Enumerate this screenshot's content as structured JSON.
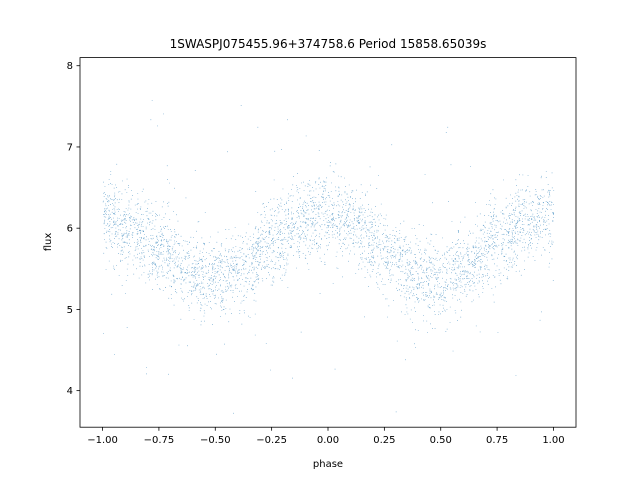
{
  "chart_data": {
    "type": "scatter",
    "title": "1SWASPJ075455.96+374758.6 Period 15858.65039s",
    "xlabel": "phase",
    "ylabel": "flux",
    "xlim": [
      -1.1,
      1.1
    ],
    "ylim": [
      3.55,
      8.1
    ],
    "x_ticks": [
      -1.0,
      -0.75,
      -0.5,
      -0.25,
      0.0,
      0.25,
      0.5,
      0.75,
      1.0
    ],
    "x_tick_labels": [
      "−1.00",
      "−0.75",
      "−0.50",
      "−0.25",
      "0.00",
      "0.25",
      "0.50",
      "0.75",
      "1.00"
    ],
    "y_ticks": [
      4,
      5,
      6,
      7,
      8
    ],
    "y_tick_labels": [
      "4",
      "5",
      "6",
      "7",
      "8"
    ],
    "grid": false,
    "legend": "none",
    "point_color": "#1f77b4",
    "series": [
      {
        "x_range": [
          -1.0,
          1.0
        ],
        "point_count": 24000,
        "trend": {
          "x": [
            -1.0,
            -0.9,
            -0.75,
            -0.6,
            -0.5,
            -0.4,
            -0.25,
            -0.1,
            0.0,
            0.1,
            0.25,
            0.4,
            0.5,
            0.6,
            0.75,
            0.9,
            1.0
          ],
          "y": [
            6.15,
            6.0,
            5.75,
            5.45,
            5.35,
            5.45,
            5.8,
            6.1,
            6.2,
            6.05,
            5.75,
            5.4,
            5.35,
            5.5,
            5.85,
            6.1,
            6.15
          ]
        },
        "scatter_sigma": 0.25
      }
    ]
  }
}
